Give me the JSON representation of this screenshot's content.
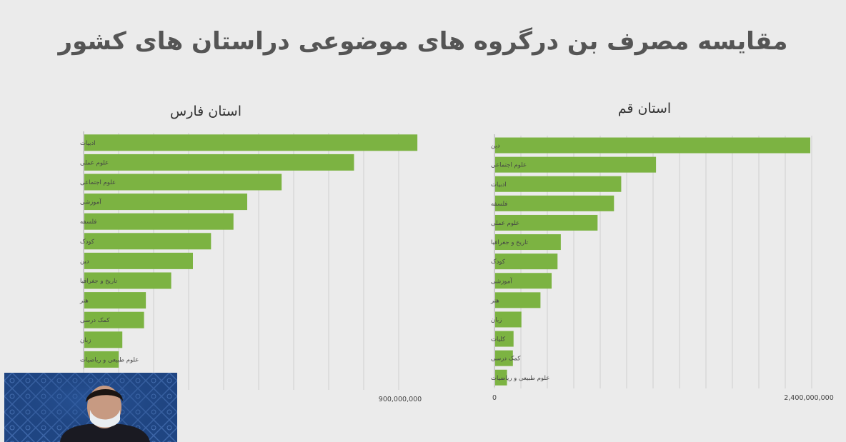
{
  "page": {
    "title": "مقایسه مصرف بن درگروه های موضوعی دراستان های کشور"
  },
  "colors": {
    "bar": "#7cb342",
    "grid": "#cfcfcf",
    "axis": "#b5b5b5",
    "text": "#333333",
    "title": "#555555"
  },
  "chart_data": [
    {
      "type": "bar",
      "orientation": "horizontal",
      "title": "استان فارس",
      "categories": [
        "ادبیات",
        "علوم عملی",
        "علوم اجتماعی",
        "آموزشی",
        "فلسفه",
        "کودک",
        "دین",
        "تاریخ و جغرافیا",
        "هنر",
        "کمک درسی",
        "زبان",
        "علوم طبیعی و ریاضیات"
      ],
      "values": [
        920000000,
        745000000,
        545000000,
        450000000,
        412000000,
        350000000,
        300000000,
        240000000,
        170000000,
        165000000,
        105000000,
        95000000
      ],
      "xlim": [
        0,
        900000000
      ],
      "x_tick_labels": [
        "900,000,000"
      ],
      "grid": true,
      "legend": "none"
    },
    {
      "type": "bar",
      "orientation": "horizontal",
      "title": "استان قم",
      "categories": [
        "دین",
        "علوم اجتماعی",
        "ادبیات",
        "فلسفه",
        "علوم عملی",
        "تاریخ و جغرافیا",
        "کودک",
        "آموزشی",
        "هنر",
        "زبان",
        "کلیات",
        "کمک درسی",
        "علوم طبیعی و ریاضیات"
      ],
      "values": [
        2400000000,
        1225000000,
        960000000,
        905000000,
        780000000,
        500000000,
        475000000,
        430000000,
        345000000,
        200000000,
        140000000,
        135000000,
        90000000
      ],
      "xlim": [
        0,
        2400000000
      ],
      "x_tick_labels": [
        "0",
        "2,400,000,000"
      ],
      "grid": true,
      "legend": "none"
    }
  ]
}
